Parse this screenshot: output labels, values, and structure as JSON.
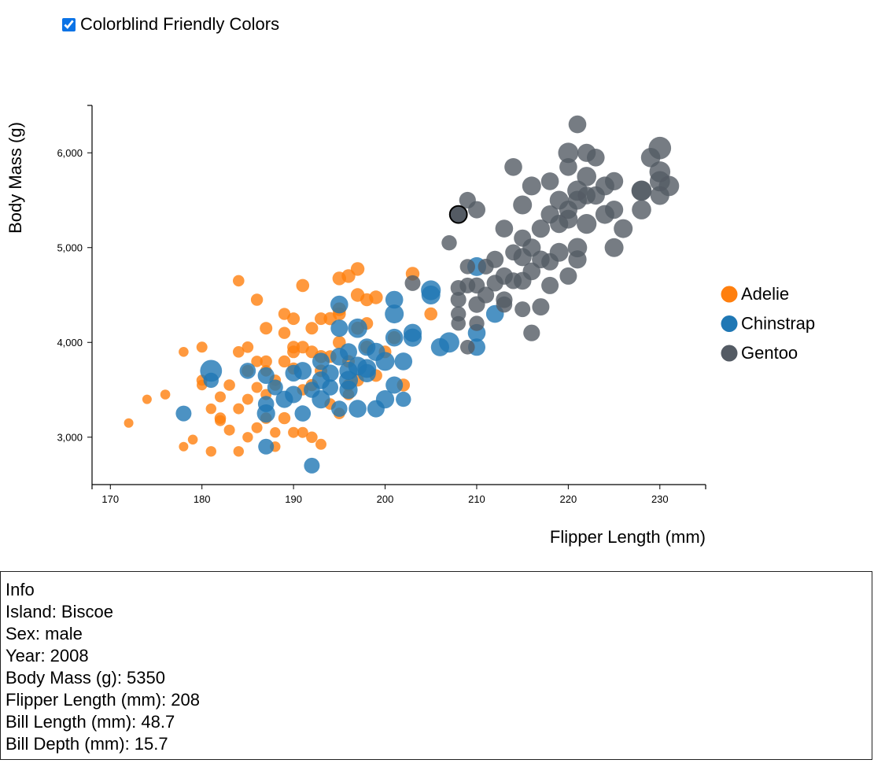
{
  "controls": {
    "colorblind_label": "Colorblind Friendly Colors",
    "colorblind_checked": true
  },
  "chart_data": {
    "type": "scatter",
    "title": "",
    "xlabel": "Flipper Length (mm)",
    "ylabel": "Body Mass (g)",
    "xlim": [
      168,
      235
    ],
    "ylim": [
      2500,
      6500
    ],
    "x_ticks": [
      170,
      180,
      190,
      200,
      210,
      220,
      230
    ],
    "y_ticks": [
      3000,
      4000,
      5000,
      6000
    ],
    "x_tick_labels": [
      "170",
      "180",
      "190",
      "200",
      "210",
      "220",
      "230"
    ],
    "y_tick_labels": [
      "3,000",
      "4,000",
      "5,000",
      "6,000"
    ],
    "legend_position": "right",
    "point_size_encoding": "bill length",
    "highlighted_point": {
      "species": "Gentoo",
      "x": 208,
      "y": 5350,
      "size": 48.7
    },
    "series": [
      {
        "name": "Adelie",
        "color": "#ff7f0e",
        "points": [
          [
            172,
            3150,
            34
          ],
          [
            174,
            3400,
            34
          ],
          [
            176,
            3450,
            35
          ],
          [
            178,
            2900,
            34
          ],
          [
            178,
            3900,
            35
          ],
          [
            179,
            2975,
            35
          ],
          [
            180,
            3950,
            37
          ],
          [
            180,
            3600,
            37
          ],
          [
            180,
            3550,
            36
          ],
          [
            181,
            3300,
            36
          ],
          [
            181,
            2850,
            36
          ],
          [
            182,
            3175,
            37
          ],
          [
            182,
            3200,
            38
          ],
          [
            182,
            3425,
            37
          ],
          [
            183,
            3075,
            37
          ],
          [
            183,
            3550,
            38
          ],
          [
            184,
            4650,
            38
          ],
          [
            184,
            3900,
            38
          ],
          [
            184,
            3300,
            37
          ],
          [
            184,
            2850,
            36
          ],
          [
            185,
            3400,
            37
          ],
          [
            185,
            3950,
            38
          ],
          [
            185,
            3700,
            39
          ],
          [
            185,
            3000,
            36
          ],
          [
            186,
            3100,
            37
          ],
          [
            186,
            4450,
            39
          ],
          [
            186,
            3800,
            38
          ],
          [
            186,
            3525,
            37
          ],
          [
            187,
            3700,
            38
          ],
          [
            187,
            3800,
            39
          ],
          [
            187,
            3450,
            37
          ],
          [
            187,
            3200,
            38
          ],
          [
            188,
            3600,
            38
          ],
          [
            188,
            3550,
            38
          ],
          [
            188,
            3050,
            36
          ],
          [
            188,
            2900,
            36
          ],
          [
            189,
            3800,
            39
          ],
          [
            189,
            3200,
            39
          ],
          [
            189,
            4100,
            39
          ],
          [
            189,
            4300,
            39
          ],
          [
            190,
            3950,
            40
          ],
          [
            190,
            3050,
            37
          ],
          [
            190,
            3725,
            39
          ],
          [
            190,
            4250,
            40
          ],
          [
            190,
            3900,
            40
          ],
          [
            191,
            4600,
            41
          ],
          [
            191,
            3500,
            38
          ],
          [
            191,
            3050,
            37
          ],
          [
            191,
            3950,
            40
          ],
          [
            192,
            3000,
            38
          ],
          [
            192,
            4150,
            40
          ],
          [
            192,
            3550,
            39
          ],
          [
            192,
            3900,
            40
          ],
          [
            193,
            3700,
            40
          ],
          [
            193,
            2925,
            37
          ],
          [
            193,
            4250,
            40
          ],
          [
            193,
            3850,
            41
          ],
          [
            194,
            4250,
            41
          ],
          [
            194,
            3350,
            38
          ],
          [
            194,
            3850,
            40
          ],
          [
            195,
            4300,
            41
          ],
          [
            195,
            3250,
            38
          ],
          [
            195,
            4675,
            42
          ],
          [
            195,
            4000,
            41
          ],
          [
            195,
            4350,
            42
          ],
          [
            196,
            3550,
            39
          ],
          [
            196,
            4700,
            42
          ],
          [
            196,
            3800,
            40
          ],
          [
            196,
            3450,
            38
          ],
          [
            197,
            4500,
            42
          ],
          [
            197,
            4775,
            42
          ],
          [
            197,
            4150,
            41
          ],
          [
            197,
            3600,
            40
          ],
          [
            198,
            4450,
            41
          ],
          [
            198,
            3950,
            41
          ],
          [
            198,
            4200,
            40
          ],
          [
            199,
            4475,
            42
          ],
          [
            199,
            3650,
            40
          ],
          [
            200,
            3900,
            40
          ],
          [
            201,
            4050,
            41
          ],
          [
            202,
            3550,
            41
          ],
          [
            203,
            4725,
            42
          ],
          [
            205,
            4300,
            41
          ],
          [
            187,
            4150,
            40
          ]
        ]
      },
      {
        "name": "Chinstrap",
        "color": "#1f77b4",
        "points": [
          [
            178,
            3250,
            46
          ],
          [
            181,
            3700,
            58
          ],
          [
            181,
            3600,
            45
          ],
          [
            185,
            3700,
            47
          ],
          [
            187,
            3650,
            48
          ],
          [
            187,
            3350,
            47
          ],
          [
            187,
            2900,
            46
          ],
          [
            187,
            3250,
            51
          ],
          [
            188,
            3525,
            46
          ],
          [
            189,
            3400,
            49
          ],
          [
            190,
            3675,
            48
          ],
          [
            190,
            3450,
            49
          ],
          [
            191,
            3700,
            50
          ],
          [
            191,
            3250,
            47
          ],
          [
            192,
            2700,
            46
          ],
          [
            192,
            3500,
            47
          ],
          [
            193,
            3800,
            49
          ],
          [
            193,
            3600,
            50
          ],
          [
            193,
            3400,
            51
          ],
          [
            194,
            3675,
            49
          ],
          [
            194,
            3525,
            47
          ],
          [
            195,
            3300,
            47
          ],
          [
            195,
            4400,
            50
          ],
          [
            195,
            3850,
            50
          ],
          [
            195,
            4150,
            49
          ],
          [
            196,
            3600,
            52
          ],
          [
            196,
            3700,
            51
          ],
          [
            196,
            3900,
            49
          ],
          [
            196,
            3500,
            51
          ],
          [
            197,
            3300,
            50
          ],
          [
            197,
            3750,
            52
          ],
          [
            197,
            4150,
            53
          ],
          [
            198,
            3675,
            51
          ],
          [
            198,
            3725,
            52
          ],
          [
            198,
            3950,
            49
          ],
          [
            199,
            3900,
            51
          ],
          [
            199,
            3300,
            49
          ],
          [
            200,
            3400,
            51
          ],
          [
            200,
            3800,
            52
          ],
          [
            201,
            4300,
            52
          ],
          [
            201,
            4450,
            50
          ],
          [
            201,
            4050,
            50
          ],
          [
            201,
            3550,
            49
          ],
          [
            202,
            3800,
            50
          ],
          [
            202,
            3400,
            45
          ],
          [
            203,
            4100,
            51
          ],
          [
            203,
            4050,
            51
          ],
          [
            205,
            4550,
            54
          ],
          [
            205,
            4500,
            52
          ],
          [
            206,
            3950,
            51
          ],
          [
            207,
            4000,
            55
          ],
          [
            210,
            4100,
            50
          ],
          [
            210,
            3950,
            49
          ],
          [
            210,
            4800,
            52
          ],
          [
            212,
            4300,
            50
          ]
        ]
      },
      {
        "name": "Gentoo",
        "color": "#545b64",
        "points": [
          [
            203,
            4625,
            46
          ],
          [
            207,
            5050,
            45
          ],
          [
            208,
            4300,
            45
          ],
          [
            208,
            4450,
            46
          ],
          [
            208,
            4200,
            44
          ],
          [
            208,
            5350,
            48.7
          ],
          [
            208,
            4575,
            46
          ],
          [
            209,
            5500,
            48
          ],
          [
            209,
            4600,
            46
          ],
          [
            209,
            3950,
            44
          ],
          [
            209,
            4800,
            45
          ],
          [
            210,
            4200,
            45
          ],
          [
            210,
            4400,
            48
          ],
          [
            210,
            4600,
            47
          ],
          [
            210,
            5400,
            49
          ],
          [
            211,
            4500,
            48
          ],
          [
            211,
            4800,
            46
          ],
          [
            212,
            4625,
            48
          ],
          [
            212,
            4875,
            49
          ],
          [
            213,
            4400,
            47
          ],
          [
            213,
            5200,
            50
          ],
          [
            213,
            4700,
            49
          ],
          [
            214,
            4650,
            48
          ],
          [
            214,
            5850,
            50
          ],
          [
            214,
            4950,
            47
          ],
          [
            215,
            4350,
            46
          ],
          [
            215,
            5100,
            49
          ],
          [
            215,
            5450,
            52
          ],
          [
            215,
            4900,
            51
          ],
          [
            216,
            4750,
            50
          ],
          [
            216,
            5000,
            51
          ],
          [
            216,
            5650,
            52
          ],
          [
            216,
            4100,
            48
          ],
          [
            217,
            5200,
            51
          ],
          [
            217,
            4375,
            49
          ],
          [
            217,
            4875,
            50
          ],
          [
            218,
            5700,
            50
          ],
          [
            218,
            5350,
            51
          ],
          [
            218,
            4600,
            49
          ],
          [
            219,
            5500,
            52
          ],
          [
            219,
            4950,
            52
          ],
          [
            219,
            5250,
            51
          ],
          [
            220,
            5850,
            50
          ],
          [
            220,
            5400,
            51
          ],
          [
            220,
            4700,
            49
          ],
          [
            220,
            5300,
            52
          ],
          [
            221,
            6300,
            50
          ],
          [
            221,
            5500,
            52
          ],
          [
            221,
            5000,
            53
          ],
          [
            221,
            4875,
            51
          ],
          [
            222,
            6000,
            51
          ],
          [
            222,
            5750,
            53
          ],
          [
            222,
            5550,
            50
          ],
          [
            222,
            5250,
            54
          ],
          [
            223,
            5950,
            50
          ],
          [
            223,
            5550,
            51
          ],
          [
            224,
            5650,
            52
          ],
          [
            224,
            5350,
            52
          ],
          [
            225,
            5400,
            51
          ],
          [
            225,
            5700,
            51
          ],
          [
            226,
            5200,
            52
          ],
          [
            228,
            5600,
            55
          ],
          [
            228,
            5400,
            53
          ],
          [
            229,
            5950,
            53
          ],
          [
            230,
            6050,
            59
          ],
          [
            230,
            5550,
            52
          ],
          [
            230,
            5700,
            55
          ],
          [
            230,
            5800,
            56
          ],
          [
            231,
            5650,
            55
          ],
          [
            218,
            4850,
            49
          ],
          [
            225,
            5000,
            52
          ],
          [
            221,
            5600,
            55
          ],
          [
            220,
            6000,
            55
          ],
          [
            228,
            5600,
            54
          ],
          [
            215,
            4650,
            50
          ],
          [
            213,
            4450,
            48
          ]
        ]
      }
    ]
  },
  "info": {
    "title": "Info",
    "lines": [
      "Island: Biscoe",
      "Sex: male",
      "Year: 2008",
      "Body Mass (g): 5350",
      "Flipper Length (mm): 208",
      "Bill Length (mm): 48.7",
      "Bill Depth (mm): 15.7"
    ]
  }
}
